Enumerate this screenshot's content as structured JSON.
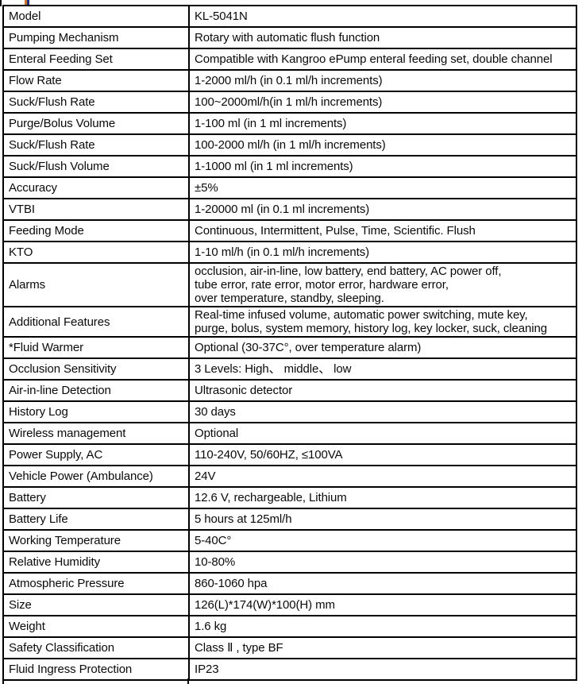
{
  "artifacts": {
    "clipped_heading_colors": {
      "orange": "#c4722e",
      "blue": "#24307a"
    },
    "border_color": "#000000",
    "text_color": "#0a0a0a"
  },
  "table": {
    "rows": [
      {
        "label": "Model",
        "value": "KL-5041N"
      },
      {
        "label": "Pumping Mechanism",
        "value": "Rotary with automatic flush function"
      },
      {
        "label": "Enteral Feeding Set",
        "value": "Compatible with Kangroo ePump enteral feeding set, double channel"
      },
      {
        "label": "Flow Rate",
        "value": "1-2000 ml/h (in 0.1 ml/h increments)"
      },
      {
        "label": "Suck/Flush Rate",
        "value": "100~2000ml/h(in 1 ml/h increments)"
      },
      {
        "label": "Purge/Bolus Volume",
        "value": "1-100 ml (in 1 ml increments)"
      },
      {
        "label": "Suck/Flush Rate",
        "value": "100-2000 ml/h (in 1 ml/h increments)"
      },
      {
        "label": "Suck/Flush Volume",
        "value": "1-1000 ml (in 1 ml increments)"
      },
      {
        "label": "Accuracy",
        "value": "±5%"
      },
      {
        "label": "VTBI",
        "value": "1-20000 ml (in 0.1 ml increments)"
      },
      {
        "label": "Feeding Mode",
        "value": "Continuous, Intermittent, Pulse, Time, Scientific. Flush"
      },
      {
        "label": "KTO",
        "value": "1-10 ml/h (in 0.1 ml/h increments)"
      },
      {
        "label": "Alarms",
        "value": "occlusion,  air-in-line, low battery, end battery, AC power off,\ntube error, rate error, motor error, hardware error,\nover temperature, standby, sleeping."
      },
      {
        "label": "Additional Features",
        "value": "Real-time infused volume, automatic power switching, mute key,\npurge, bolus, system memory, history log, key locker, suck, cleaning"
      },
      {
        "label": "*Fluid Warmer",
        "value": "Optional (30-37C°, over temperature alarm)"
      },
      {
        "label": "Occlusion Sensitivity",
        "value": "3 Levels: High、 middle、 low"
      },
      {
        "label": "Air-in-line Detection",
        "value": "Ultrasonic detector"
      },
      {
        "label": "History Log",
        "value": "30 days"
      },
      {
        "label": "Wireless management",
        "value": "Optional"
      },
      {
        "label": "Power Supply, AC",
        "value": "110-240V, 50/60HZ, ≤100VA"
      },
      {
        "label": "Vehicle Power (Ambulance)",
        "value": "24V"
      },
      {
        "label": "Battery",
        "value": "12.6 V, rechargeable, Lithium"
      },
      {
        "label": "Battery Life",
        "value": "5 hours at 125ml/h"
      },
      {
        "label": "Working Temperature",
        "value": "5-40C°"
      },
      {
        "label": "Relative Humidity",
        "value": "10-80%"
      },
      {
        "label": "Atmospheric Pressure",
        "value": "860-1060 hpa"
      },
      {
        "label": "Size",
        "value": "126(L)*174(W)*100(H) mm"
      },
      {
        "label": "Weight",
        "value": "1.6 kg"
      },
      {
        "label": "Safety Classification",
        "value": "Class Ⅱ , type BF"
      },
      {
        "label": "Fluid Ingress Protection",
        "value": "IP23"
      }
    ]
  }
}
